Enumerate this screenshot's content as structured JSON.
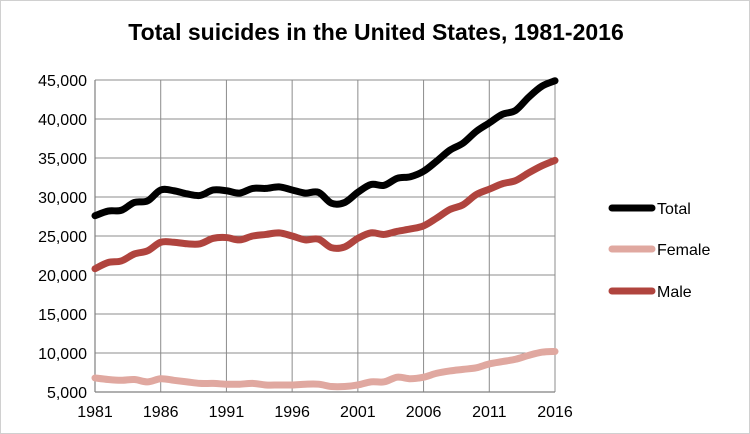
{
  "chart_data": {
    "type": "line",
    "title": "Total suicides in the United States, 1981-2016",
    "xlabel": "",
    "ylabel": "",
    "x": [
      1981,
      1982,
      1983,
      1984,
      1985,
      1986,
      1987,
      1988,
      1989,
      1990,
      1991,
      1992,
      1993,
      1994,
      1995,
      1996,
      1997,
      1998,
      1999,
      2000,
      2001,
      2002,
      2003,
      2004,
      2005,
      2006,
      2007,
      2008,
      2009,
      2010,
      2011,
      2012,
      2013,
      2014,
      2015,
      2016
    ],
    "xlim": [
      1981,
      2016
    ],
    "ylim": [
      5000,
      45000
    ],
    "x_ticks": [
      "1981",
      "1986",
      "1991",
      "1996",
      "2001",
      "2006",
      "2011",
      "2016"
    ],
    "y_ticks": [
      "5,000",
      "10,000",
      "15,000",
      "20,000",
      "25,000",
      "30,000",
      "35,000",
      "40,000",
      "45,000"
    ],
    "grid": "vertical and horizontal",
    "legend_position": "right",
    "series": [
      {
        "name": "Total",
        "color": "#000000",
        "values": [
          27600,
          28200,
          28300,
          29300,
          29500,
          30900,
          30800,
          30400,
          30200,
          30900,
          30800,
          30500,
          31100,
          31100,
          31300,
          30900,
          30500,
          30600,
          29200,
          29300,
          30600,
          31600,
          31500,
          32400,
          32600,
          33300,
          34600,
          36000,
          36900,
          38400,
          39500,
          40600,
          41100,
          42800,
          44200,
          44900
        ]
      },
      {
        "name": "Female",
        "color": "#e0a8a0",
        "values": [
          6800,
          6600,
          6500,
          6600,
          6300,
          6700,
          6500,
          6300,
          6100,
          6100,
          6000,
          6000,
          6100,
          5900,
          5900,
          5900,
          6000,
          6000,
          5700,
          5700,
          5900,
          6300,
          6300,
          6900,
          6700,
          6900,
          7400,
          7700,
          7900,
          8100,
          8600,
          8900,
          9200,
          9700,
          10100,
          10200
        ]
      },
      {
        "name": "Male",
        "color": "#b0443e",
        "values": [
          20800,
          21600,
          21800,
          22700,
          23100,
          24200,
          24200,
          24000,
          24000,
          24700,
          24800,
          24500,
          25000,
          25200,
          25400,
          25000,
          24500,
          24600,
          23500,
          23600,
          24700,
          25400,
          25200,
          25600,
          25900,
          26300,
          27300,
          28400,
          29000,
          30300,
          31000,
          31700,
          32100,
          33100,
          34000,
          34700
        ]
      }
    ]
  }
}
